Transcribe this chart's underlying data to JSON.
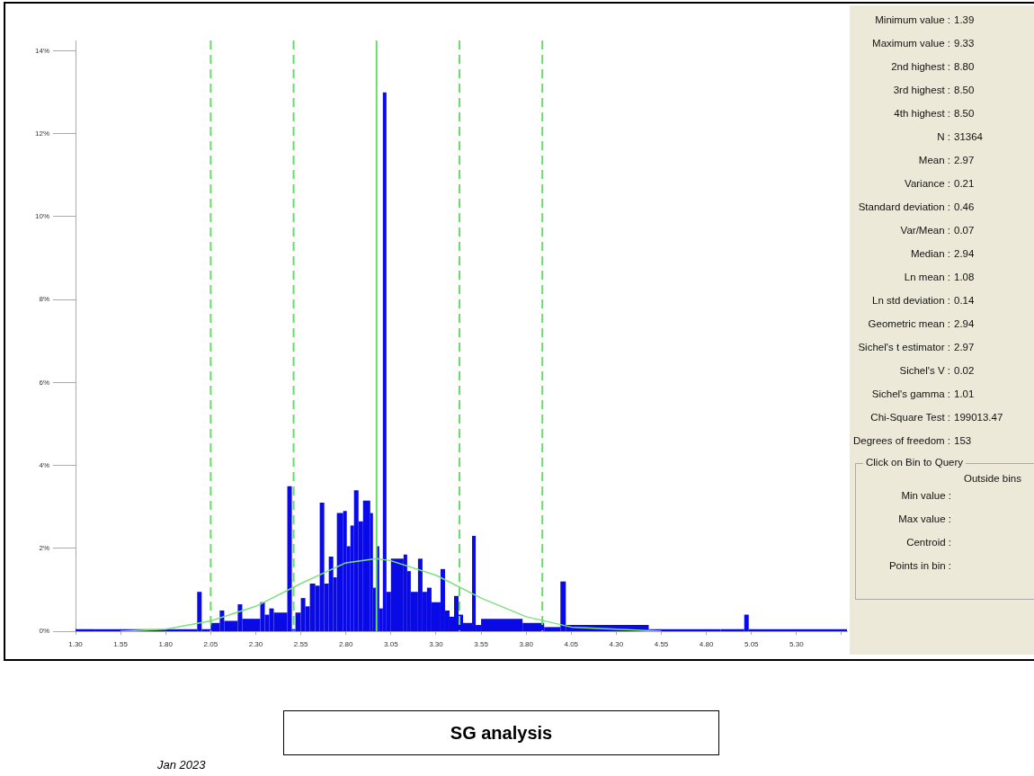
{
  "chart_data": {
    "type": "histogram",
    "title": "SG analysis",
    "subtitle": "Jan 2023",
    "color": "#0a0ae6",
    "bins": [
      1.3,
      1.4,
      1.975,
      2.0,
      2.05,
      2.1,
      2.125,
      2.2,
      2.225,
      2.325,
      2.35,
      2.375,
      2.4,
      2.475,
      2.5,
      2.52,
      2.55,
      2.575,
      2.6,
      2.63,
      2.655,
      2.68,
      2.705,
      2.73,
      2.75,
      2.785,
      2.805,
      2.825,
      2.845,
      2.87,
      2.895,
      2.935,
      2.95,
      2.97,
      2.985,
      3.005,
      3.025,
      3.05,
      3.12,
      3.14,
      3.16,
      3.2,
      3.225,
      3.25,
      3.275,
      3.325,
      3.35,
      3.375,
      3.4,
      3.425,
      3.45,
      3.5,
      3.52,
      3.55,
      3.78,
      3.9,
      3.99,
      4.02,
      4.48,
      4.88,
      5.01,
      5.035,
      5.58
    ],
    "values": [
      0.05,
      0.05,
      0.95,
      0.05,
      0.2,
      0.5,
      0.25,
      0.65,
      0.3,
      0.7,
      0.4,
      0.55,
      0.45,
      3.5,
      0.05,
      0.45,
      0.8,
      0.6,
      1.15,
      1.1,
      3.1,
      1.15,
      1.8,
      1.3,
      2.85,
      2.9,
      2.05,
      2.55,
      3.4,
      2.65,
      3.15,
      2.85,
      1.05,
      2.05,
      0.55,
      13.0,
      0.95,
      1.75,
      1.85,
      1.45,
      0.95,
      1.75,
      0.95,
      1.05,
      0.7,
      1.5,
      0.5,
      0.35,
      0.85,
      0.4,
      0.2,
      2.3,
      0.15,
      0.3,
      0.2,
      0.1,
      1.2,
      0.15,
      0.05,
      0.05,
      0.4,
      0.05
    ],
    "series": [
      {
        "type": "line",
        "color": "#7ee07e",
        "x": [
          1.55,
          1.8,
          2.05,
          2.3,
          2.55,
          2.8,
          2.97,
          3.05,
          3.3,
          3.55,
          3.8,
          4.05,
          4.3,
          4.55
        ],
        "values": [
          0,
          0.05,
          0.25,
          0.6,
          1.15,
          1.65,
          1.75,
          1.7,
          1.35,
          0.8,
          0.35,
          0.1,
          0.05,
          0
        ]
      }
    ],
    "ref_lines": [
      {
        "axis": "x",
        "value": 2.05,
        "color": "#66dd66",
        "line_style": "dashed"
      },
      {
        "axis": "x",
        "value": 2.51,
        "color": "#66dd66",
        "line_style": "dashed"
      },
      {
        "axis": "x",
        "value": 2.97,
        "color": "#66dd66",
        "line_style": "solid"
      },
      {
        "axis": "x",
        "value": 3.43,
        "color": "#66dd66",
        "line_style": "dashed"
      },
      {
        "axis": "x",
        "value": 3.89,
        "color": "#66dd66",
        "line_style": "dashed"
      }
    ],
    "xlim": [
      1.3,
      5.58
    ],
    "xticks": [
      {
        "value": 1.3,
        "label": "1.30"
      },
      1.55,
      {
        "value": 1.8,
        "label": "1.80"
      },
      2.05,
      {
        "value": 2.3,
        "label": "2.30"
      },
      2.55,
      {
        "value": 2.8,
        "label": "2.80"
      },
      3.05,
      {
        "value": 3.3,
        "label": "3.30"
      },
      3.55,
      {
        "value": 3.8,
        "label": "3.80"
      },
      4.05,
      {
        "value": 4.3,
        "label": "4.30"
      },
      4.55,
      {
        "value": 4.8,
        "label": "4.80"
      },
      5.05,
      {
        "value": 5.3,
        "label": "5.30"
      },
      {
        "value": 5.55,
        "label": null
      }
    ],
    "ylim": [
      0,
      14.25
    ],
    "yticks": [
      {
        "value": 0,
        "label": "0%"
      },
      {
        "value": 2,
        "label": "2%"
      },
      {
        "value": 4,
        "label": "4%"
      },
      {
        "value": 6,
        "label": "6%"
      },
      {
        "value": 8,
        "label": "8%"
      },
      {
        "value": 10,
        "label": "10%"
      },
      {
        "value": 12,
        "label": "12%"
      },
      {
        "value": 14,
        "label": "14%"
      }
    ],
    "annotations": [
      "Minimum value : 1.39",
      "Maximum value : 9.33",
      "2nd highest : 8.80",
      "3rd highest : 8.50",
      "4th highest : 8.50",
      "N : 31364",
      "Mean : 2.97",
      "Variance : 0.21",
      "Standard deviation : 0.46",
      "Var/Mean : 0.07",
      "Median : 2.94",
      "Ln mean : 1.08",
      "Ln std deviation : 0.14",
      "Geometric mean : 2.94",
      "Sichel's t estimator : 2.97",
      "Sichel's V : 0.02",
      "Sichel's gamma : 1.01",
      "Chi-Square Test : 199013.47",
      "Degrees of freedom : 153",
      "Click on Bin to Query",
      "Outside bins",
      "Min value :",
      "Max value :",
      "Centroid :",
      "Points in bin :"
    ]
  }
}
